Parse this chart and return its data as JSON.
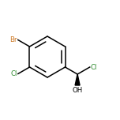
{
  "bg_color": "#ffffff",
  "bond_color": "#000000",
  "atom_colors": {
    "Br": "#cc7722",
    "Cl": "#2e8b2e",
    "OH": "#000000",
    "default": "#000000"
  },
  "figsize": [
    1.52,
    1.52
  ],
  "dpi": 100
}
